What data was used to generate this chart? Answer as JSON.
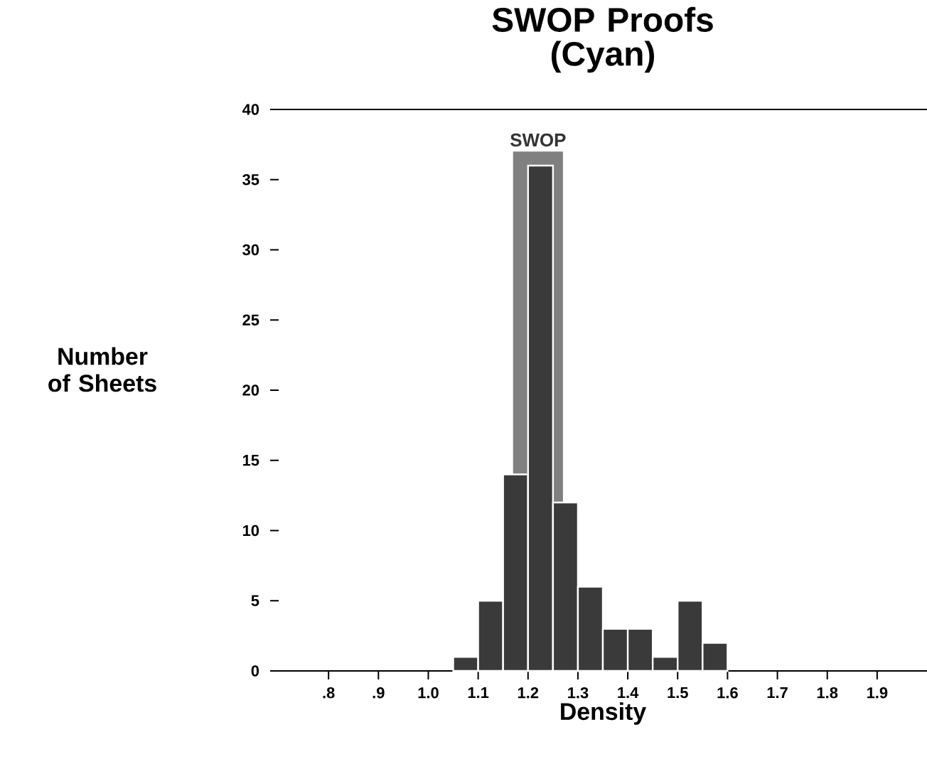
{
  "chart_data": {
    "type": "histogram",
    "title": "SWOP Proofs (Cyan)",
    "xlabel": "Density",
    "ylabel": "Number of Sheets",
    "bins": [
      1.05,
      1.1,
      1.15,
      1.2,
      1.25,
      1.3,
      1.35,
      1.4,
      1.45,
      1.5,
      1.55,
      1.6
    ],
    "values": [
      1,
      5,
      14,
      36,
      12,
      6,
      3,
      3,
      1,
      5,
      2
    ],
    "color": "#3a3a3a",
    "xlim": [
      0.7,
      2.0
    ],
    "xticks": [
      {
        "value": 0.8,
        "label": ".8"
      },
      {
        "value": 0.9,
        "label": ".9"
      },
      {
        "value": 1.0,
        "label": "1.0"
      },
      {
        "value": 1.1,
        "label": "1.1"
      },
      {
        "value": 1.2,
        "label": "1.2"
      },
      {
        "value": 1.3,
        "label": "1.3"
      },
      {
        "value": 1.4,
        "label": "1.4"
      },
      {
        "value": 1.5,
        "label": "1.5"
      },
      {
        "value": 1.6,
        "label": "1.6"
      },
      {
        "value": 1.7,
        "label": "1.7"
      },
      {
        "value": 1.8,
        "label": "1.8"
      },
      {
        "value": 1.9,
        "label": "1.9"
      }
    ],
    "ylim": [
      0,
      40
    ],
    "yticks": [
      0,
      5,
      10,
      15,
      20,
      25,
      30,
      35,
      40
    ],
    "bands": [
      {
        "axis": "x",
        "from": 1.17,
        "to": 1.27,
        "label": "SWOP",
        "color": "#808080"
      }
    ]
  }
}
